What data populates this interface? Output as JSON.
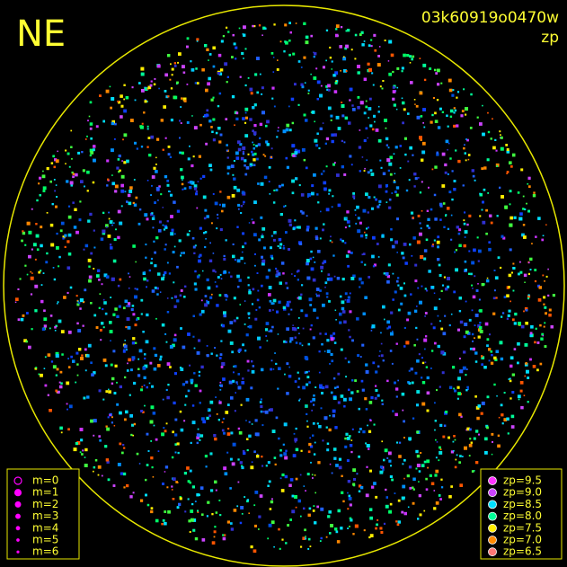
{
  "labels": {
    "direction": "NE",
    "frame": "03k60919o0470w",
    "quantity": "zp"
  },
  "magnitude_legend": {
    "color": "#ff00ff",
    "entries": [
      "m=0",
      "m=1",
      "m=2",
      "m=3",
      "m=4",
      "m=5",
      "m=6"
    ]
  },
  "zp_legend": [
    {
      "label": "zp=9.5",
      "color": "#ff33ff"
    },
    {
      "label": "zp=9.0",
      "color": "#cc44ff"
    },
    {
      "label": "zp=8.5",
      "color": "#00e0ff"
    },
    {
      "label": "zp=8.0",
      "color": "#00ff99"
    },
    {
      "label": "zp=7.5",
      "color": "#ffee00"
    },
    {
      "label": "zp=7.0",
      "color": "#ff8800"
    },
    {
      "label": "zp=6.5",
      "color": "#ff7777"
    }
  ]
}
